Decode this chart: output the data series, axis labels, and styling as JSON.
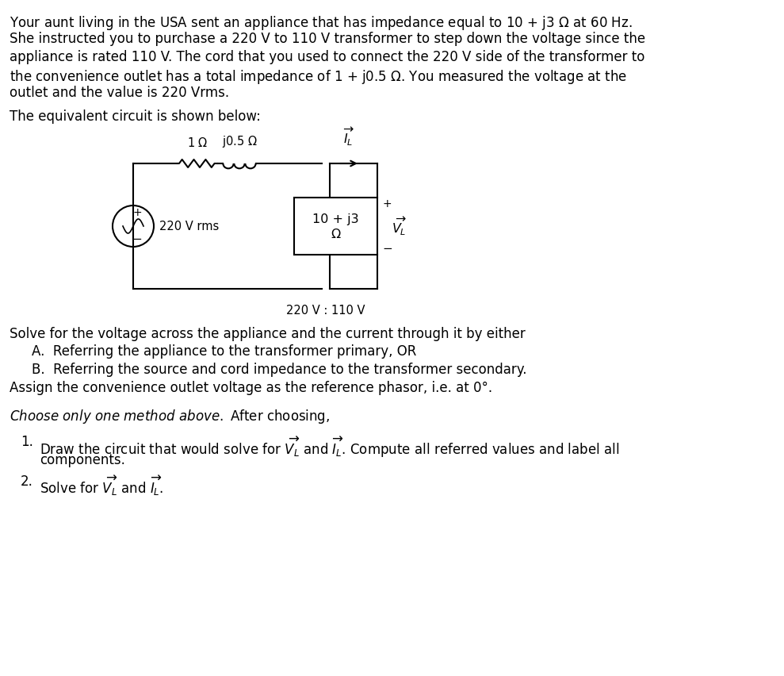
{
  "background_color": "#ffffff",
  "fig_width": 9.89,
  "fig_height": 8.52,
  "dpi": 100,
  "font_size_body": 12.0,
  "font_size_circuit": 10.5,
  "text_color": "#000000",
  "para_lines": [
    "Your aunt living in the USA sent an appliance that has impedance equal to 10 + j3 $\\Omega$ at 60 Hz.",
    "She instructed you to purchase a 220 V to 110 V transformer to step down the voltage since the",
    "appliance is rated 110 V. The cord that you used to connect the 220 V side of the transformer to",
    "the convenience outlet has a total impedance of 1 + j0.5 $\\Omega$. You measured the voltage at the",
    "outlet and the value is 220 Vrms."
  ],
  "circuit_header": "The equivalent circuit is shown below:",
  "r1_label": "1 $\\Omega$",
  "r2_label": "j0.5 $\\Omega$",
  "source_label": "220 V rms",
  "load_line1": "10 + j3",
  "load_line2": "$\\Omega$",
  "transformer_label": "220 V : 110 V",
  "solve_line0": "Solve for the voltage across the appliance and the current through it by either",
  "solve_lineA": "A.  Referring the appliance to the transformer primary, OR",
  "solve_lineB": "B.  Referring the source and cord impedance to the transformer secondary.",
  "solve_lineC": "Assign the convenience outlet voltage as the reference phasor, i.e. at 0°.",
  "choose_line": "Choose only one method above. After choosing,",
  "item1_line1": "Draw the circuit that would solve for $\\overrightarrow{V_L}$ and $\\overrightarrow{I_L}$. Compute all referred values and label all",
  "item1_line2": "components.",
  "item2_line": "Solve for $\\overrightarrow{V_L}$ and $\\overrightarrow{I_L}$."
}
